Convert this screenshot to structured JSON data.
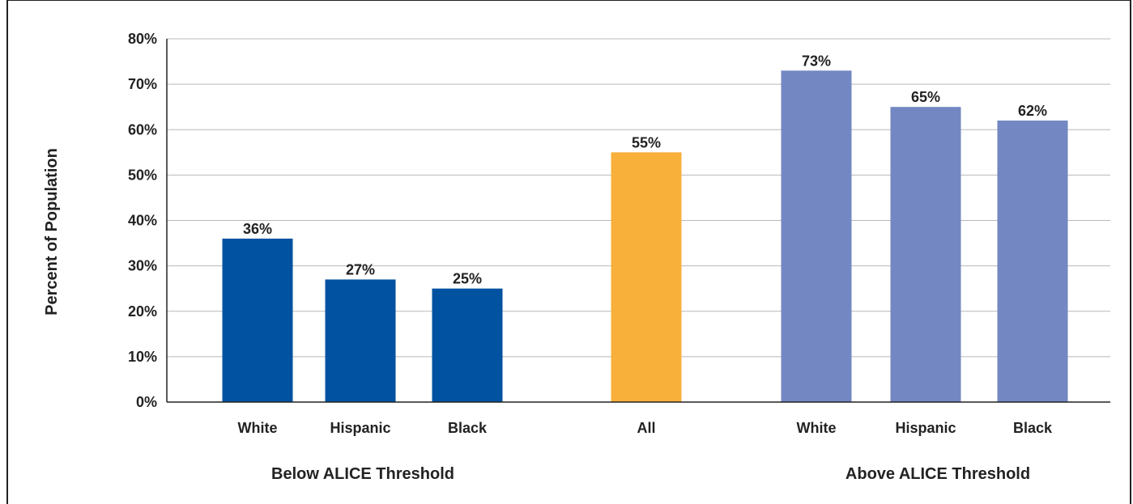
{
  "chart_data": {
    "type": "bar",
    "ylabel": "Percent of Population",
    "ylim": [
      0,
      80
    ],
    "yticks": [
      "0%",
      "10%",
      "20%",
      "30%",
      "40%",
      "50%",
      "60%",
      "70%",
      "80%"
    ],
    "grid": true,
    "bars": [
      {
        "category": "White",
        "value": 36,
        "label": "36%",
        "group": "Below ALICE Threshold",
        "color": "#0152a1"
      },
      {
        "category": "Hispanic",
        "value": 27,
        "label": "27%",
        "group": "Below ALICE Threshold",
        "color": "#0152a1"
      },
      {
        "category": "Black",
        "value": 25,
        "label": "25%",
        "group": "Below ALICE Threshold",
        "color": "#0152a1"
      },
      {
        "category": "All",
        "value": 55,
        "label": "55%",
        "group": "",
        "color": "#f8b03b"
      },
      {
        "category": "White",
        "value": 73,
        "label": "73%",
        "group": "Above ALICE Threshold",
        "color": "#7387c2"
      },
      {
        "category": "Hispanic",
        "value": 65,
        "label": "65%",
        "group": "Above ALICE Threshold",
        "color": "#7387c2"
      },
      {
        "category": "Black",
        "value": 62,
        "label": "62%",
        "group": "Above ALICE Threshold",
        "color": "#7387c2"
      }
    ],
    "groups": [
      "Below ALICE Threshold",
      "Above ALICE Threshold"
    ]
  }
}
